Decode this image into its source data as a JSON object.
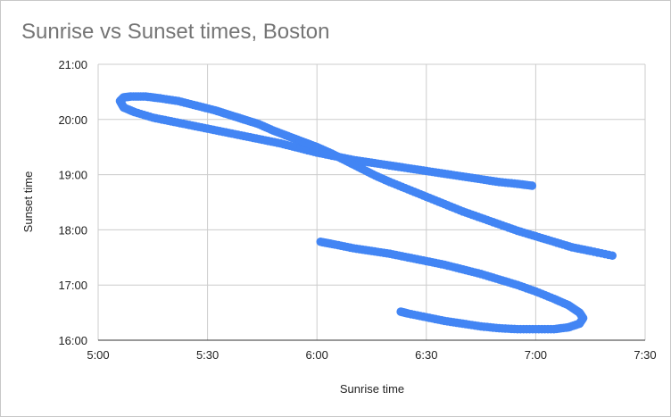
{
  "chart_data": {
    "type": "scatter",
    "title": "Sunrise vs Sunset times, Boston",
    "xlabel": "Sunrise time",
    "ylabel": "Sunset time",
    "x_ticks": [
      "5:00",
      "5:30",
      "6:00",
      "6:30",
      "7:00",
      "7:30"
    ],
    "y_ticks": [
      "16:00",
      "17:00",
      "18:00",
      "19:00",
      "20:00",
      "21:00"
    ],
    "xlim": [
      "5:00",
      "7:30"
    ],
    "ylim": [
      "16:00",
      "21:00"
    ],
    "grid": true,
    "marker_color": "#4285f4",
    "points": [
      [
        "6:59",
        "18:48"
      ],
      [
        "6:55",
        "18:50"
      ],
      [
        "6:50",
        "18:52"
      ],
      [
        "6:45",
        "18:55"
      ],
      [
        "6:40",
        "18:58"
      ],
      [
        "6:35",
        "19:01"
      ],
      [
        "6:30",
        "19:04"
      ],
      [
        "6:25",
        "19:07"
      ],
      [
        "6:20",
        "19:10"
      ],
      [
        "6:15",
        "19:13"
      ],
      [
        "6:10",
        "19:16"
      ],
      [
        "6:05",
        "19:20"
      ],
      [
        "6:00",
        "19:24"
      ],
      [
        "5:55",
        "19:29"
      ],
      [
        "5:50",
        "19:34"
      ],
      [
        "5:45",
        "19:38"
      ],
      [
        "5:40",
        "19:42"
      ],
      [
        "5:35",
        "19:46"
      ],
      [
        "5:30",
        "19:50"
      ],
      [
        "5:25",
        "19:54"
      ],
      [
        "5:20",
        "19:58"
      ],
      [
        "5:15",
        "20:02"
      ],
      [
        "5:10",
        "20:08"
      ],
      [
        "5:07",
        "20:13"
      ],
      [
        "5:06",
        "20:20"
      ],
      [
        "5:07",
        "20:24"
      ],
      [
        "5:09",
        "20:25"
      ],
      [
        "5:13",
        "20:25"
      ],
      [
        "5:17",
        "20:23"
      ],
      [
        "5:22",
        "20:20"
      ],
      [
        "5:27",
        "20:15"
      ],
      [
        "5:32",
        "20:10"
      ],
      [
        "5:36",
        "20:05"
      ],
      [
        "5:40",
        "20:00"
      ],
      [
        "5:44",
        "19:55"
      ],
      [
        "5:48",
        "19:48"
      ],
      [
        "5:52",
        "19:42"
      ],
      [
        "5:56",
        "19:36"
      ],
      [
        "6:00",
        "19:30"
      ],
      [
        "6:04",
        "19:23"
      ],
      [
        "6:08",
        "19:15"
      ],
      [
        "6:12",
        "19:07"
      ],
      [
        "6:16",
        "18:59"
      ],
      [
        "6:20",
        "18:52"
      ],
      [
        "6:25",
        "18:44"
      ],
      [
        "6:30",
        "18:36"
      ],
      [
        "6:35",
        "18:28"
      ],
      [
        "6:40",
        "18:20"
      ],
      [
        "6:45",
        "18:13"
      ],
      [
        "6:50",
        "18:06"
      ],
      [
        "6:55",
        "17:59"
      ],
      [
        "7:00",
        "17:53"
      ],
      [
        "7:05",
        "17:47"
      ],
      [
        "7:10",
        "17:41"
      ],
      [
        "7:15",
        "17:37"
      ],
      [
        "7:21",
        "17:32"
      ],
      [
        "6:01",
        "17:47"
      ],
      [
        "6:05",
        "17:44"
      ],
      [
        "6:10",
        "17:40"
      ],
      [
        "6:15",
        "17:37"
      ],
      [
        "6:20",
        "17:34"
      ],
      [
        "6:25",
        "17:30"
      ],
      [
        "6:30",
        "17:26"
      ],
      [
        "6:35",
        "17:22"
      ],
      [
        "6:40",
        "17:17"
      ],
      [
        "6:45",
        "17:12"
      ],
      [
        "6:50",
        "17:06"
      ],
      [
        "6:55",
        "17:00"
      ],
      [
        "7:00",
        "16:53"
      ],
      [
        "7:05",
        "16:45"
      ],
      [
        "7:09",
        "16:38"
      ],
      [
        "7:12",
        "16:30"
      ],
      [
        "7:13",
        "16:24"
      ],
      [
        "7:12",
        "16:18"
      ],
      [
        "7:09",
        "16:14"
      ],
      [
        "7:05",
        "16:12"
      ],
      [
        "7:00",
        "16:12"
      ],
      [
        "6:55",
        "16:12"
      ],
      [
        "6:50",
        "16:13"
      ],
      [
        "6:45",
        "16:15"
      ],
      [
        "6:40",
        "16:18"
      ],
      [
        "6:35",
        "16:21"
      ],
      [
        "6:30",
        "16:25"
      ],
      [
        "6:25",
        "16:29"
      ],
      [
        "6:23",
        "16:31"
      ]
    ]
  }
}
